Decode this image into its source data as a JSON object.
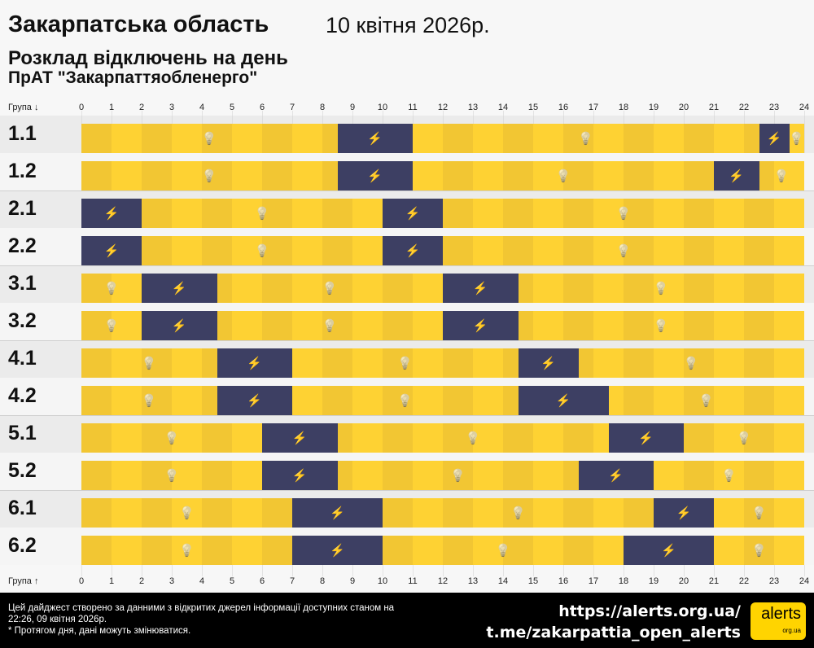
{
  "header": {
    "region": "Закарпатська область",
    "date": "10 квітня 2026р.",
    "title": "Розклад відключень на день",
    "company": "ПрАТ \"Закарпаттяобленерго\""
  },
  "axis": {
    "top_label": "Група ↓",
    "bottom_label": "Група ↑",
    "hours": [
      "0",
      "1",
      "2",
      "3",
      "4",
      "5",
      "6",
      "7",
      "8",
      "9",
      "10",
      "11",
      "12",
      "13",
      "14",
      "15",
      "16",
      "17",
      "18",
      "19",
      "20",
      "21",
      "22",
      "23",
      "24"
    ]
  },
  "colors": {
    "power_on": "#fed233",
    "power_on_alt": "#f2c633",
    "power_off": "#3d3f63"
  },
  "icons": {
    "power_on": "lightbulb-icon",
    "power_off": "no-power-icon"
  },
  "groups": [
    {
      "name": "1.1",
      "outages": [
        [
          8.5,
          11
        ],
        [
          22.5,
          23.5
        ]
      ]
    },
    {
      "name": "1.2",
      "outages": [
        [
          8.5,
          11
        ],
        [
          21,
          22.5
        ]
      ]
    },
    {
      "name": "2.1",
      "outages": [
        [
          0,
          2
        ],
        [
          10,
          12
        ]
      ]
    },
    {
      "name": "2.2",
      "outages": [
        [
          0,
          2
        ],
        [
          10,
          12
        ]
      ]
    },
    {
      "name": "3.1",
      "outages": [
        [
          2,
          4.5
        ],
        [
          12,
          14.5
        ]
      ]
    },
    {
      "name": "3.2",
      "outages": [
        [
          2,
          4.5
        ],
        [
          12,
          14.5
        ]
      ]
    },
    {
      "name": "4.1",
      "outages": [
        [
          4.5,
          7
        ],
        [
          14.5,
          16.5
        ]
      ]
    },
    {
      "name": "4.2",
      "outages": [
        [
          4.5,
          7
        ],
        [
          14.5,
          17.5
        ]
      ]
    },
    {
      "name": "5.1",
      "outages": [
        [
          6,
          8.5
        ],
        [
          17.5,
          20
        ]
      ]
    },
    {
      "name": "5.2",
      "outages": [
        [
          6,
          8.5
        ],
        [
          16.5,
          19
        ]
      ]
    },
    {
      "name": "6.1",
      "outages": [
        [
          7,
          10
        ],
        [
          19,
          21
        ]
      ]
    },
    {
      "name": "6.2",
      "outages": [
        [
          7,
          10
        ],
        [
          18,
          21
        ]
      ]
    }
  ],
  "footer": {
    "note": "Цей дайджест створено за данними з відкритих джерел інформації доступних станом на 22:26, 09 квітня 2026р.",
    "disclaimer": "* Протягом дня, дані можуть змінюватися.",
    "link1": "https://alerts.org.ua/",
    "link2": "t.me/zakarpattia_open_alerts",
    "logo": "alerts",
    "logo_sub": "org.ua"
  }
}
